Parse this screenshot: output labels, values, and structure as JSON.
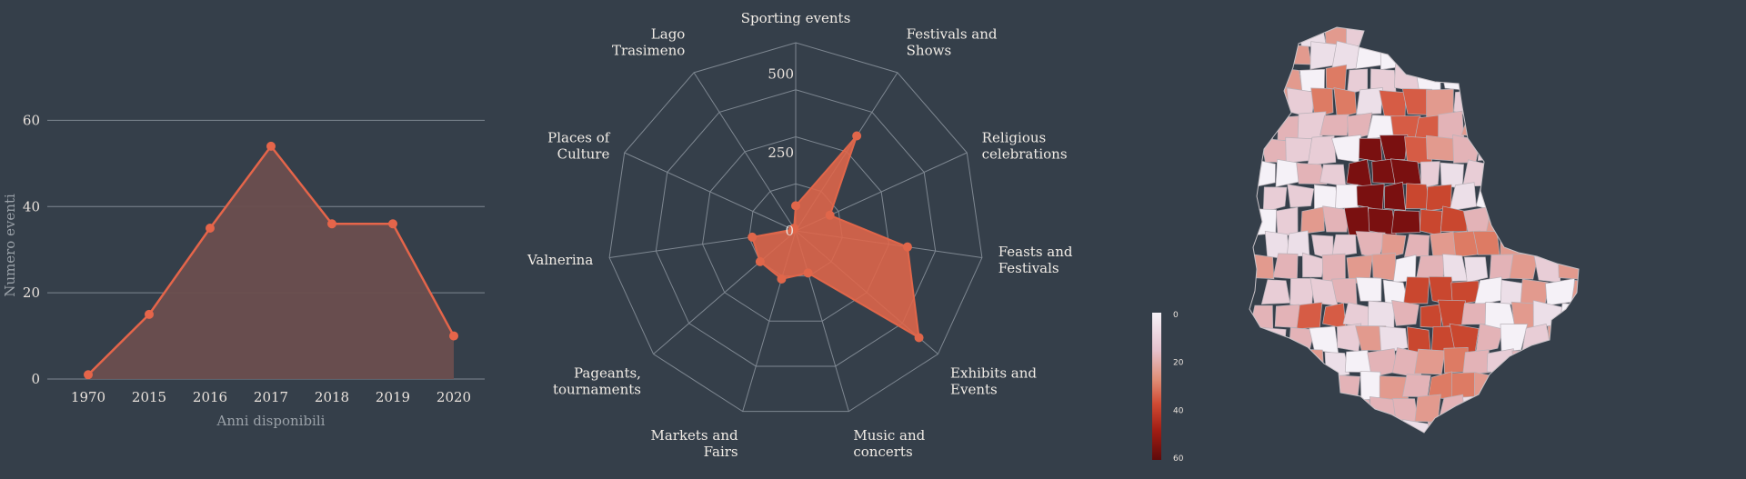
{
  "chart_data": [
    {
      "type": "area",
      "x": [
        "1970",
        "2015",
        "2016",
        "2017",
        "2018",
        "2019",
        "2020"
      ],
      "values": [
        1,
        15,
        35,
        54,
        36,
        36,
        10
      ],
      "xlabel": "Anni disponibili",
      "ylabel": "Numero eventi",
      "ylim": [
        0,
        70
      ],
      "yticks": [
        "0",
        "20",
        "40",
        "60"
      ],
      "grid": true,
      "colors": {
        "line": "#e5654a",
        "fill": "#6b4e4e",
        "grid": "#7e8791"
      }
    },
    {
      "type": "radar",
      "categories": [
        "Sporting events",
        "Festivals and Shows",
        "Religious celebrations",
        "Feasts and Festivals",
        "Exhibits and Events",
        "Music and concerts",
        "Markets and Fairs",
        "Pageants, tournaments",
        "Valnerina",
        "Places of Culture",
        "Lago Trasimeno"
      ],
      "values": [
        80,
        360,
        120,
        360,
        520,
        140,
        160,
        150,
        140,
        10,
        10
      ],
      "rticks": [
        "0",
        "250",
        "500"
      ],
      "rmax": 600,
      "colors": {
        "fill": "#e0664a",
        "grid": "#7e8791"
      }
    },
    {
      "type": "heatmap",
      "subtype": "choropleth map",
      "colorbar_ticks": [
        "0",
        "20",
        "40",
        "60"
      ],
      "colorscale": [
        "#f5f1f7",
        "#e6cfdc",
        "#e08f78",
        "#d04a33",
        "#a11d14",
        "#5f0a0a"
      ]
    }
  ]
}
